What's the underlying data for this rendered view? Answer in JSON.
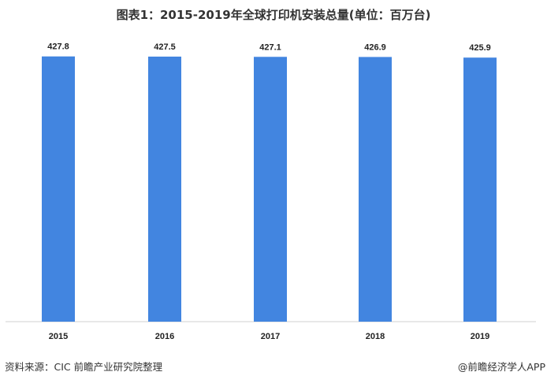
{
  "chart_data": {
    "type": "bar",
    "title": "图表1：2015-2019年全球打印机安装总量(单位：百万台)",
    "categories": [
      "2015",
      "2016",
      "2017",
      "2018",
      "2019"
    ],
    "values": [
      427.8,
      427.5,
      427.1,
      426.9,
      425.9
    ],
    "data_labels": [
      "427.8",
      "427.5",
      "427.1",
      "426.9",
      "425.9"
    ],
    "xlabel": "",
    "ylabel": "",
    "ylim": [
      0,
      430
    ],
    "grid": false,
    "bar_color": "#4285E0"
  },
  "footer": {
    "source": "资料来源：CIC 前瞻产业研究院整理",
    "credit": "@前瞻经济学人APP"
  }
}
